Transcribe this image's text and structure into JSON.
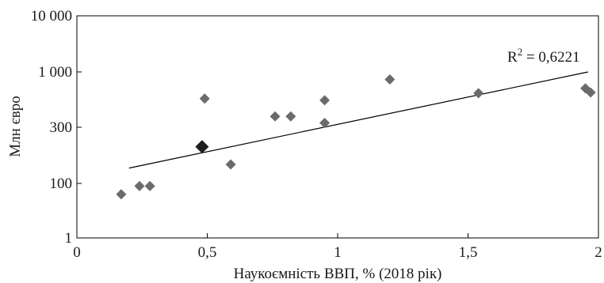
{
  "chart_data": {
    "type": "scatter",
    "title": "",
    "xlabel": "Наукоємність ВВП, % (2018 рік)",
    "ylabel": "Млн євро",
    "x_range": [
      0,
      2
    ],
    "y_scale": "log",
    "y_range": [
      1,
      10000
    ],
    "grid": false,
    "x_ticks": [
      {
        "value": 0,
        "label": "0"
      },
      {
        "value": 0.5,
        "label": "0,5"
      },
      {
        "value": 1,
        "label": "1"
      },
      {
        "value": 1.5,
        "label": "1,5"
      },
      {
        "value": 2,
        "label": "2"
      }
    ],
    "y_ticks": [
      {
        "value": 1,
        "label": "1"
      },
      {
        "value": 100,
        "label": "100"
      },
      {
        "value": 300,
        "label": "300"
      },
      {
        "value": 1000,
        "label": "1 000"
      },
      {
        "value": 10000,
        "label": "10 000"
      }
    ],
    "points": [
      {
        "x": 0.17,
        "y": 40
      },
      {
        "x": 0.24,
        "y": 80
      },
      {
        "x": 0.28,
        "y": 80
      },
      {
        "x": 0.49,
        "y": 560
      },
      {
        "x": 0.59,
        "y": 145
      },
      {
        "x": 0.76,
        "y": 380
      },
      {
        "x": 0.82,
        "y": 380
      },
      {
        "x": 0.95,
        "y": 330
      },
      {
        "x": 0.95,
        "y": 540
      },
      {
        "x": 1.2,
        "y": 850
      },
      {
        "x": 1.54,
        "y": 630
      },
      {
        "x": 1.95,
        "y": 700
      },
      {
        "x": 1.97,
        "y": 640
      }
    ],
    "highlight": {
      "x": 0.48,
      "y": 205
    },
    "trendline": {
      "x": [
        0.2,
        1.96
      ],
      "y": [
        135,
        1000
      ],
      "annotation": "R² = 0,6221"
    },
    "colors": {
      "point": "#6b6b6b",
      "highlight": "#1e1e1e",
      "line": "#000000"
    }
  }
}
